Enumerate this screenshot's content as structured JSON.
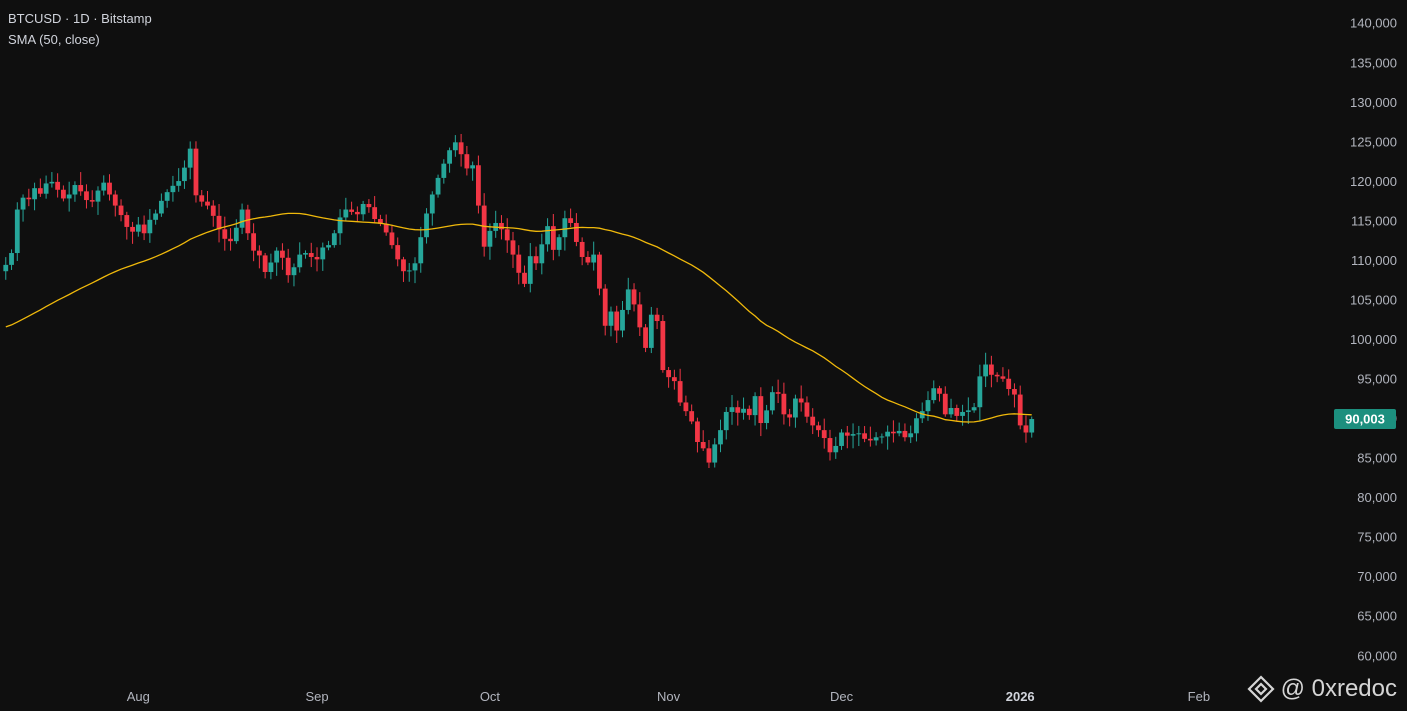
{
  "header": {
    "symbol_line": "BTCUSD · 1D · Bitstamp",
    "indicator_line": "SMA (50, close)"
  },
  "watermark": {
    "text": "@ 0xredoc",
    "icon": "binance-diamond-icon"
  },
  "colors": {
    "background": "#0f0f0f",
    "up": "#26a69a",
    "down": "#f23645",
    "sma": "#f0b90b",
    "price_tag": "#1c8f7e"
  },
  "chart_data": {
    "type": "candlestick",
    "title": "BTCUSD · 1D · Bitstamp",
    "indicator": "SMA (50, close)",
    "y_ticks": [
      "140,000",
      "135,000",
      "130,000",
      "125,000",
      "120,000",
      "115,000",
      "110,000",
      "105,000",
      "100,000",
      "95,000",
      "90,000",
      "85,000",
      "80,000",
      "75,000",
      "70,000",
      "65,000",
      "60,000"
    ],
    "y_range": [
      57000,
      143000
    ],
    "x_labels": [
      {
        "label": "Aug",
        "date": "2025-08-01"
      },
      {
        "label": "Sep",
        "date": "2025-09-01"
      },
      {
        "label": "Oct",
        "date": "2025-10-01"
      },
      {
        "label": "Nov",
        "date": "2025-11-01"
      },
      {
        "label": "Dec",
        "date": "2025-12-01"
      },
      {
        "label": "2026",
        "date": "2026-01-01",
        "bold": true
      },
      {
        "label": "Feb",
        "date": "2026-02-01"
      }
    ],
    "date_range": [
      "2025-07-08",
      "2026-02-09"
    ],
    "last_price": "90,003",
    "last_price_value": 90003,
    "grid": false,
    "candles_start_date": "2025-07-09",
    "closes": [
      109500,
      111000,
      116500,
      118000,
      117800,
      119200,
      118500,
      119800,
      120000,
      119000,
      117900,
      118400,
      119600,
      118800,
      117700,
      117500,
      118900,
      119900,
      118400,
      117000,
      115800,
      114300,
      113700,
      114600,
      113500,
      115200,
      116000,
      117600,
      118700,
      119500,
      120100,
      121800,
      124200,
      118300,
      117500,
      117000,
      115700,
      114000,
      112800,
      112500,
      114200,
      116500,
      113500,
      111300,
      110700,
      108600,
      109800,
      111300,
      110400,
      108200,
      109200,
      110800,
      111000,
      110500,
      110200,
      111700,
      112000,
      113500,
      115500,
      116500,
      116200,
      115900,
      117200,
      116800,
      115300,
      114700,
      113600,
      112000,
      110200,
      108700,
      108800,
      109700,
      113000,
      116000,
      118400,
      120500,
      122300,
      124000,
      125000,
      123500,
      121700,
      122100,
      117000,
      111800,
      113800,
      114800,
      114000,
      112600,
      110800,
      108500,
      107100,
      110600,
      109700,
      112100,
      114400,
      111400,
      113000,
      115400,
      114800,
      112400,
      110500,
      109800,
      110800,
      106500,
      101800,
      103600,
      101200,
      103800,
      106400,
      104500,
      101600,
      99000,
      103200,
      102400,
      96200,
      95300,
      94800,
      92100,
      91000,
      89700,
      87100,
      86300,
      84500,
      86800,
      88600,
      90900,
      91500,
      90800,
      91300,
      90500,
      92900,
      89500,
      91100,
      93400,
      93200,
      90600,
      90200,
      92600,
      92100,
      90300,
      89200,
      88600,
      87600,
      85800,
      86600,
      88300,
      87900,
      88100,
      88200,
      87500,
      87300,
      87700,
      87800,
      88400,
      88200,
      88500,
      87700,
      88200,
      90100,
      91000,
      92400,
      93900,
      93200,
      90600,
      91400,
      90400,
      90900,
      91100,
      91500,
      95400,
      96900,
      95600,
      95400,
      95100,
      93800,
      93100,
      89200,
      88300,
      90003
    ],
    "sma50_last": 90300
  }
}
